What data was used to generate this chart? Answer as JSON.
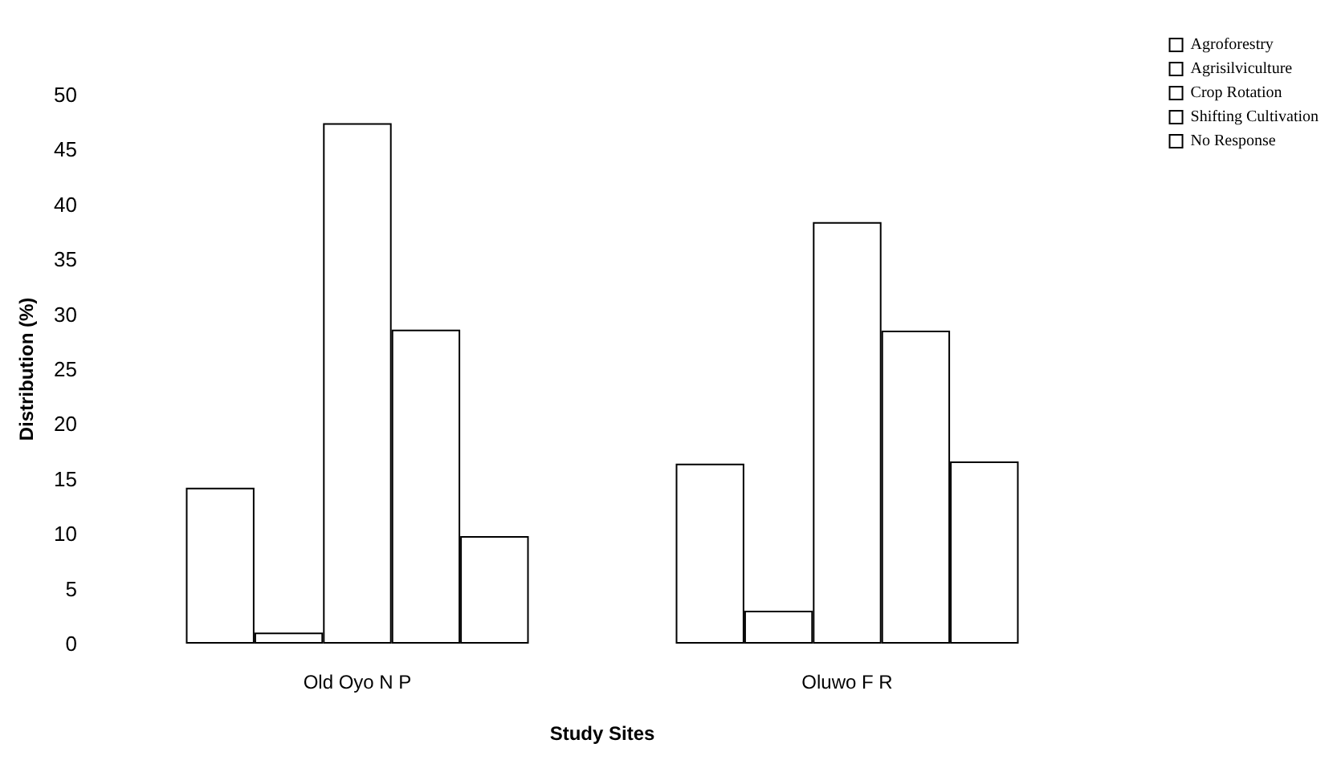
{
  "chart_data": {
    "type": "bar",
    "xlabel": "Study Sites",
    "ylabel": "Distribution (%)",
    "categories": [
      "Old Oyo N P",
      "Oluwo F R"
    ],
    "series": [
      {
        "name": "Agroforestry",
        "color": "#ffffff",
        "values": [
          14.2,
          16.4
        ]
      },
      {
        "name": "Agrisilviculture",
        "color": "#ffffff",
        "values": [
          1,
          3
        ]
      },
      {
        "name": "Crop Rotation",
        "color": "#ffffff",
        "values": [
          47.4,
          38.4
        ]
      },
      {
        "name": "Shifting Cultivation",
        "color": "#ffffff",
        "values": [
          28.6,
          28.5
        ]
      },
      {
        "name": "No Response",
        "color": "#ffffff",
        "values": [
          9.8,
          16.6
        ]
      }
    ],
    "ylim": [
      0,
      50
    ],
    "yticks": [
      0,
      5,
      10,
      15,
      20,
      25,
      30,
      35,
      40,
      45,
      50
    ],
    "grid": false,
    "legend": "top right"
  }
}
